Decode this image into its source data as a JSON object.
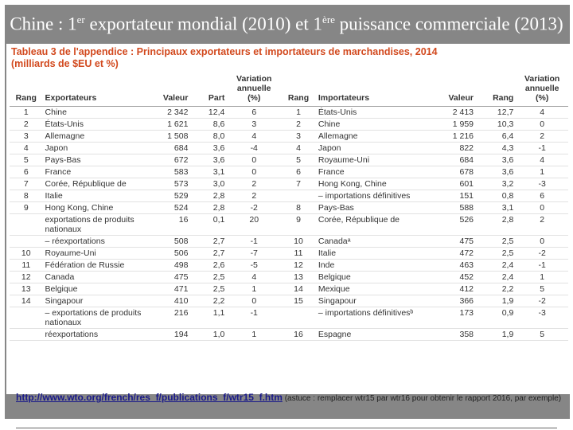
{
  "slide": {
    "title": [
      "Chine :  1",
      "er",
      " exportateur mondial (2010) et 1",
      "ère",
      " puissance commerciale (2013)"
    ],
    "table": {
      "caption": "Tableau 3 de l'appendice : Principaux exportateurs et importateurs de marchandises, 2014",
      "subcaption": "(milliards de $EU et %)",
      "columns": [
        "Rang",
        "Exportateurs",
        "Valeur",
        "Part",
        "Variation annuelle (%)",
        "Rang",
        "Importateurs",
        "Valeur",
        "Rang",
        "Variation annuelle (%)"
      ],
      "rows": [
        [
          "1",
          "Chine",
          "2 342",
          "12,4",
          "6",
          "1",
          "États-Unis",
          "2 413",
          "12,7",
          "4"
        ],
        [
          "2",
          "États-Unis",
          "1 621",
          "8,6",
          "3",
          "2",
          "Chine",
          "1 959",
          "10,3",
          "0"
        ],
        [
          "3",
          "Allemagne",
          "1 508",
          "8,0",
          "4",
          "3",
          "Allemagne",
          "1 216",
          "6,4",
          "2"
        ],
        [
          "4",
          "Japon",
          "684",
          "3,6",
          "-4",
          "4",
          "Japon",
          "822",
          "4,3",
          "-1"
        ],
        [
          "5",
          "Pays-Bas",
          "672",
          "3,6",
          "0",
          "5",
          "Royaume-Uni",
          "684",
          "3,6",
          "4"
        ],
        [
          "6",
          "France",
          "583",
          "3,1",
          "0",
          "6",
          "France",
          "678",
          "3,6",
          "1"
        ],
        [
          "7",
          "Corée, République de",
          "573",
          "3,0",
          "2",
          "7",
          "Hong Kong, Chine",
          "601",
          "3,2",
          "-3"
        ],
        [
          "8",
          "Italie",
          "529",
          "2,8",
          "2",
          null,
          "– importations définitives",
          "151",
          "0,8",
          "6"
        ],
        [
          "9",
          "Hong Kong, Chine",
          "524",
          "2,8",
          "-2",
          "8",
          "Pays-Bas",
          "588",
          "3,1",
          "0"
        ],
        [
          null,
          "exportations de produits nationaux",
          "16",
          "0,1",
          "20",
          "9",
          "Corée, République de",
          "526",
          "2,8",
          "2"
        ],
        [
          null,
          "– réexportations",
          "508",
          "2,7",
          "-1",
          "10",
          "Canadaᵃ",
          "475",
          "2,5",
          "0"
        ],
        [
          "10",
          "Royaume-Uni",
          "506",
          "2,7",
          "-7",
          "11",
          "Italie",
          "472",
          "2,5",
          "-2"
        ],
        [
          "11",
          "Fédération de Russie",
          "498",
          "2,6",
          "-5",
          "12",
          "Inde",
          "463",
          "2,4",
          "-1"
        ],
        [
          "12",
          "Canada",
          "475",
          "2,5",
          "4",
          "13",
          "Belgique",
          "452",
          "2,4",
          "1"
        ],
        [
          "13",
          "Belgique",
          "471",
          "2,5",
          "1",
          "14",
          "Mexique",
          "412",
          "2,2",
          "5"
        ],
        [
          "14",
          "Singapour",
          "410",
          "2,2",
          "0",
          "15",
          "Singapour",
          "366",
          "1,9",
          "-2"
        ],
        [
          null,
          "– exportations de produits nationaux",
          "216",
          "1,1",
          "-1",
          null,
          "– importations définitivesᵇ",
          "173",
          "0,9",
          "-3"
        ],
        [
          null,
          "réexportations",
          "194",
          "1,0",
          "1",
          "16",
          "Espagne",
          "358",
          "1,9",
          "5"
        ]
      ]
    },
    "footer": {
      "link": "http://www.wto.org/french/res_f/publications_f/wtr15_f.htm",
      "note": " (astuce : remplacer wtr15 par wtr16 pour obtenir le rapport 2016, par exemple)"
    }
  }
}
